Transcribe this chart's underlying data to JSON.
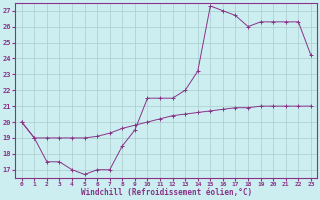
{
  "xlabel": "Windchill (Refroidissement éolien,°C)",
  "xlim_min": -0.5,
  "xlim_max": 23.5,
  "ylim_min": 16.5,
  "ylim_max": 27.5,
  "xticks": [
    0,
    1,
    2,
    3,
    4,
    5,
    6,
    7,
    8,
    9,
    10,
    11,
    12,
    13,
    14,
    15,
    16,
    17,
    18,
    19,
    20,
    21,
    22,
    23
  ],
  "yticks": [
    17,
    18,
    19,
    20,
    21,
    22,
    23,
    24,
    25,
    26,
    27
  ],
  "bg_color": "#cceef0",
  "grid_color": "#aacccc",
  "line_color": "#883388",
  "curve1_x": [
    0,
    1,
    2,
    3,
    4,
    5,
    6,
    7,
    8,
    9,
    10,
    11,
    12,
    13,
    14,
    15,
    16,
    17,
    18,
    19,
    20,
    21,
    22,
    23
  ],
  "curve1_y": [
    20,
    19,
    17.5,
    17.5,
    17.0,
    16.7,
    17.0,
    17.0,
    18.5,
    19.5,
    21.5,
    21.5,
    21.5,
    22.0,
    23.2,
    27.3,
    27.0,
    26.7,
    26.0,
    26.3,
    26.3,
    26.3,
    26.3,
    24.2
  ],
  "curve2_x": [
    0,
    1,
    2,
    3,
    4,
    5,
    6,
    7,
    8,
    9,
    10,
    11,
    12,
    13,
    14,
    15,
    16,
    17,
    18,
    19,
    20,
    21,
    22,
    23
  ],
  "curve2_y": [
    20,
    19,
    19.0,
    19.0,
    19.0,
    19.0,
    19.1,
    19.3,
    19.6,
    19.8,
    20.0,
    20.2,
    20.4,
    20.5,
    20.6,
    20.7,
    20.8,
    20.9,
    20.9,
    21.0,
    21.0,
    21.0,
    21.0,
    21.0
  ]
}
